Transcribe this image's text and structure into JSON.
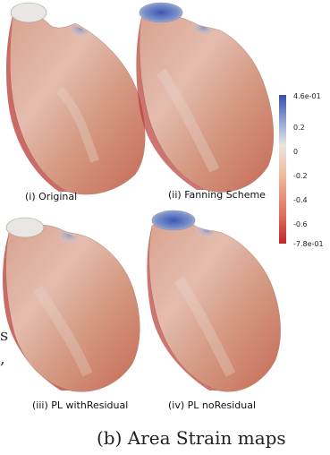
{
  "panels": [
    {
      "label": "(i) Original"
    },
    {
      "label": "(ii) Fanning Scheme"
    },
    {
      "label": "(iii) PL withResidual"
    },
    {
      "label": "(iv) PL noResidual"
    }
  ],
  "colorbar": {
    "ticks": [
      "4.6e-01",
      "0.2",
      "0",
      "-0.2",
      "-0.4",
      "-0.6",
      "-7.8e-01"
    ],
    "top_color": "#3a4fa8",
    "mid_color": "#e9e4df",
    "bottom_color": "#c0262b"
  },
  "caption": "(b) Area Strain maps",
  "left_margin_glyphs": [
    "s",
    ","
  ]
}
